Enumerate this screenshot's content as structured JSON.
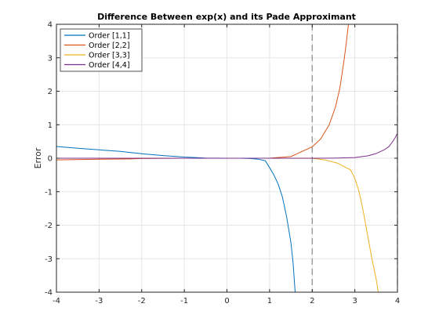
{
  "chart_data": {
    "type": "line",
    "title": "Difference Between exp(x) and its Pade Approximant",
    "xlabel": "",
    "ylabel": "Error",
    "xlim": [
      -4,
      4
    ],
    "ylim": [
      -4,
      4
    ],
    "xticks": [
      -4,
      -3,
      -2,
      -1,
      0,
      1,
      2,
      3,
      4
    ],
    "yticks": [
      -4,
      -3,
      -2,
      -1,
      0,
      1,
      2,
      3,
      4
    ],
    "grid": true,
    "legend_position": "top-left",
    "vertical_reference_lines": [
      2,
      4
    ],
    "series": [
      {
        "name": "Order [1,1]",
        "color": "#0072BD",
        "x": [
          -4,
          -3.5,
          -3,
          -2.5,
          -2,
          -1.5,
          -1,
          -0.5,
          0,
          0.3,
          0.5,
          0.7,
          0.9,
          1.0,
          1.1,
          1.2,
          1.3,
          1.4,
          1.5,
          1.55,
          1.6
        ],
        "y": [
          0.352,
          0.298,
          0.25,
          0.204,
          0.135,
          0.08,
          0.035,
          0.006,
          0.0,
          -0.001,
          -0.006,
          -0.022,
          -0.074,
          -0.282,
          -0.495,
          -0.767,
          -1.154,
          -1.75,
          -2.513,
          -3.1,
          -4.0
        ]
      },
      {
        "name": "Order [2,2]",
        "color": "#D95319",
        "x": [
          -4,
          -3,
          -2.25,
          -2,
          -1,
          0,
          1,
          1.5,
          2,
          2.2,
          2.4,
          2.55,
          2.65,
          2.75,
          2.8,
          2.85
        ],
        "y": [
          -0.05,
          -0.03,
          -0.02,
          -0.01,
          0,
          0,
          0.002,
          0.05,
          0.34,
          0.58,
          1.0,
          1.55,
          2.1,
          2.95,
          3.45,
          4.0
        ]
      },
      {
        "name": "Order [3,3]",
        "color": "#EDB120",
        "x": [
          -4,
          0,
          1,
          2,
          2.3,
          2.6,
          2.9,
          3.0,
          3.1,
          3.2,
          3.3,
          3.4,
          3.5,
          3.55
        ],
        "y": [
          0,
          0,
          0,
          -0.003,
          -0.05,
          -0.15,
          -0.35,
          -0.6,
          -1.0,
          -1.6,
          -2.3,
          -3.0,
          -3.6,
          -4.0
        ]
      },
      {
        "name": "Order [4,4]",
        "color": "#7E2F8E",
        "x": [
          -4,
          0,
          2,
          2.5,
          3,
          3.3,
          3.5,
          3.7,
          3.8,
          3.9,
          3.95,
          4.0
        ],
        "y": [
          0,
          0,
          0,
          0.003,
          0.02,
          0.07,
          0.14,
          0.26,
          0.35,
          0.52,
          0.62,
          0.75
        ]
      }
    ]
  }
}
